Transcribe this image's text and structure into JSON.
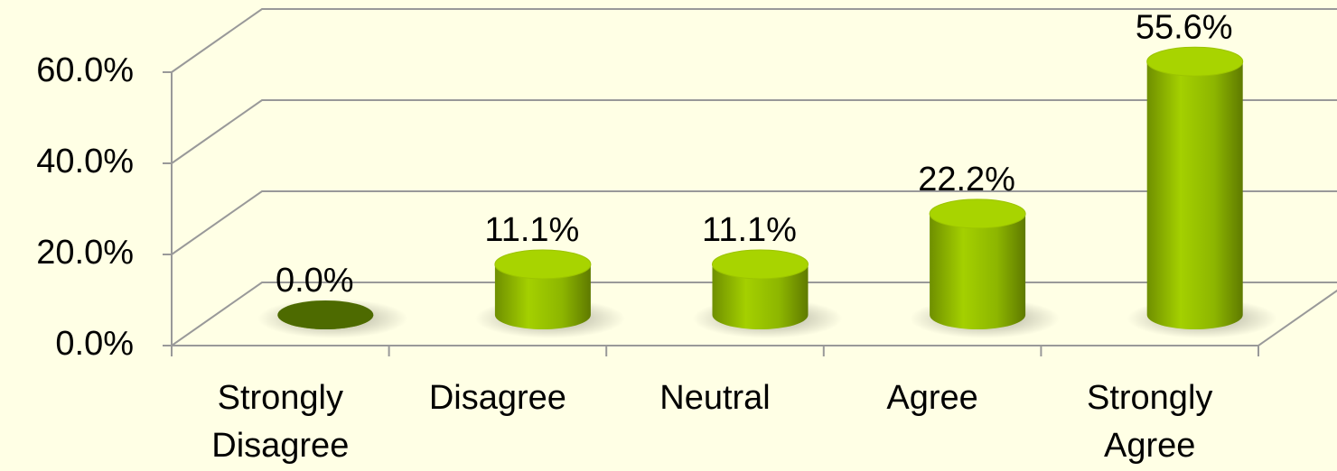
{
  "chart_data": {
    "type": "bar3d",
    "categories": [
      "Strongly Disagree",
      "Disagree",
      "Neutral",
      "Agree",
      "Strongly Agree"
    ],
    "values": [
      0,
      11.1,
      11.1,
      22.2,
      55.6
    ],
    "value_labels": [
      "0.0%",
      "11.1%",
      "11.1%",
      "22.2%",
      "55.6%"
    ],
    "color": "#8db600",
    "ylim": [
      0,
      60
    ],
    "yticks": [
      {
        "value": 0,
        "label": "0.0%"
      },
      {
        "value": 20,
        "label": "20.0%"
      },
      {
        "value": 40,
        "label": "40.0%"
      },
      {
        "value": 60,
        "label": "60.0%"
      }
    ],
    "grid": true
  }
}
